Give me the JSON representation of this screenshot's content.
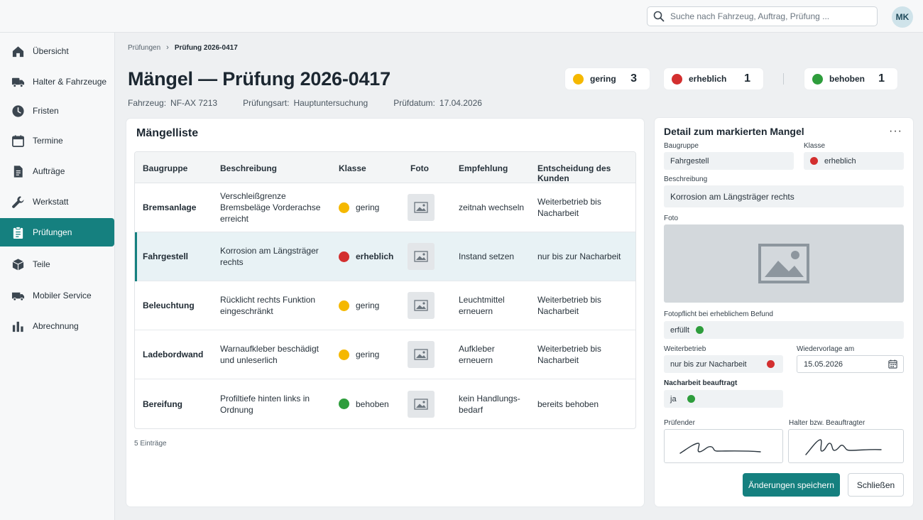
{
  "search": {
    "placeholder": "Suche nach Fahrzeug, Auftrag, Prüfung ..."
  },
  "user": {
    "initials": "MK"
  },
  "sidebar": {
    "items": [
      {
        "label": "Übersicht",
        "icon": "home-icon"
      },
      {
        "label": "Halter & Fahrzeuge",
        "icon": "truck-icon"
      },
      {
        "label": "Fristen",
        "icon": "clock-icon"
      },
      {
        "label": "Termine",
        "icon": "calendar-icon"
      },
      {
        "label": "Aufträge",
        "icon": "document-icon"
      },
      {
        "label": "Werkstatt",
        "icon": "wrench-icon"
      },
      {
        "label": "Prüfungen",
        "icon": "clipboard-icon",
        "active": true
      },
      {
        "label": "Teile",
        "icon": "box-icon"
      },
      {
        "label": "Mobiler Service",
        "icon": "van-icon"
      },
      {
        "label": "Abrechnung",
        "icon": "bar-chart-icon"
      }
    ]
  },
  "breadcrumb": {
    "parent": "Prüfungen",
    "current": "Prüfung 2026-0417"
  },
  "header": {
    "title": "Mängel — Prüfung 2026-0417",
    "meta": {
      "fahrzeug_label": "Fahrzeug:",
      "fahrzeug": "NF-AX 7213",
      "pruefungsart_label": "Prüfungsart:",
      "pruefungsart": "Hauptuntersuchung",
      "pruefdatum_label": "Prüfdatum:",
      "pruefdatum": "17.04.2026"
    }
  },
  "summary": [
    {
      "label": "gering",
      "count": "3",
      "color": "#f5b800"
    },
    {
      "label": "erheblich",
      "count": "1",
      "color": "#d32f2f"
    },
    {
      "label": "behoben",
      "count": "1",
      "color": "#2e9d3c"
    }
  ],
  "colors": {
    "accent": "#15807f",
    "gering": "#f5b800",
    "erheblich": "#d32f2f",
    "behoben": "#2e9d3c"
  },
  "list": {
    "title": "Mängelliste",
    "columns": [
      "Baugruppe",
      "Beschreibung",
      "Klasse",
      "Foto",
      "Empfehlung",
      "Entscheidung des Kunden"
    ],
    "rows": [
      {
        "baugruppe": "Bremsanlage",
        "beschreibung": "Verschleißgrenze Bremsbeläge Vorderachse erreicht",
        "klasse": "gering",
        "empfehlung": "zeitnah wechseln",
        "entscheidung": "Weiterbetrieb bis Nacharbeit"
      },
      {
        "baugruppe": "Fahrgestell",
        "beschreibung": "Korrosion am Längsträger rechts",
        "klasse": "erheblich",
        "empfehlung": "Instand setzen",
        "entscheidung": "nur bis zur Nacharbeit"
      },
      {
        "baugruppe": "Beleuchtung",
        "beschreibung": "Rücklicht rechts Funktion eingeschränkt",
        "klasse": "gering",
        "empfehlung": "Leuchtmittel erneuern",
        "entscheidung": "Weiterbetrieb bis Nacharbeit"
      },
      {
        "baugruppe": "Ladebordwand",
        "beschreibung": "Warnaufkleber beschädigt und unleserlich",
        "klasse": "gering",
        "empfehlung": "Aufkleber erneuern",
        "entscheidung": "Weiterbetrieb bis Nacharbeit"
      },
      {
        "baugruppe": "Bereifung",
        "beschreibung": "Profiltiefe hinten links in Ordnung",
        "klasse": "behoben",
        "empfehlung": "kein Handlungs-bedarf",
        "entscheidung": "bereits behoben"
      }
    ],
    "entries": "5 Einträge"
  },
  "detail": {
    "title": "Detail zum markierten Mangel",
    "more": "···",
    "baugruppe_label": "Baugruppe",
    "baugruppe": "Fahrgestell",
    "klasse_label": "Klasse",
    "klasse": "erheblich",
    "beschreibung_label": "Beschreibung",
    "beschreibung": "Korrosion am Längsträger rechts",
    "foto_label": "Foto",
    "fotopflicht_label": "Fotopflicht bei erheblichem Befund",
    "fotopflicht": "erfüllt",
    "weiterbetrieb_label": "Weiterbetrieb",
    "weiterbetrieb": "nur bis zur Nacharbeit",
    "wiedervorlage_label": "Wiedervorlage am",
    "wiedervorlage": "15.05.2026",
    "nacharbeit_label": "Nacharbeit beauftragt",
    "nacharbeit": "ja",
    "pruefender_label": "Prüfender",
    "halter_label": "Halter bzw. Beauftragter",
    "save_label": "Änderungen speichern",
    "close_label": "Schließen"
  }
}
